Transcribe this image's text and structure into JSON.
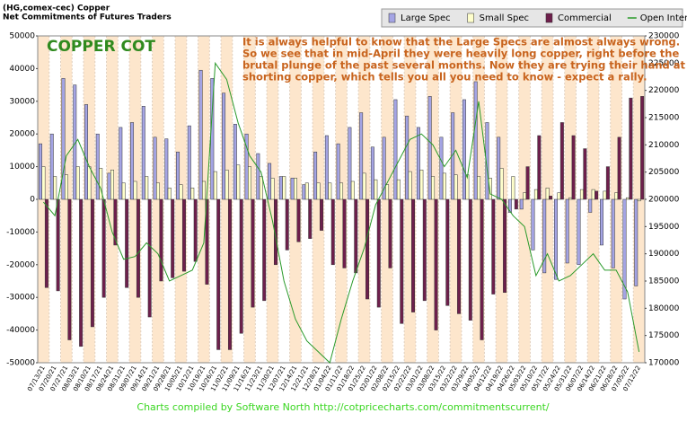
{
  "chart_data": {
    "type": "bar",
    "title_lines": [
      "(HG,comex-cec) Copper",
      "Net Commitments of Futures Traders"
    ],
    "label": "COPPER COT",
    "annotation_lines": [
      "It is always helpful to know that the Large Specs are almost always wrong.",
      "So we see that in mid-April they were heavily long copper, right before the",
      "brutal plunge of the past several months. Now they are trying their hand at",
      "shorting copper, which tells you all you need to know - expect a rally."
    ],
    "footer": "Charts compiled by Software North  http://cotpricecharts.com/commitmentscurrent/",
    "categories": [
      "07/13/21",
      "07/20/21",
      "07/27/21",
      "08/03/21",
      "08/10/21",
      "08/17/21",
      "08/24/21",
      "08/31/21",
      "09/07/21",
      "09/14/21",
      "09/21/21",
      "09/28/21",
      "10/05/21",
      "10/12/21",
      "10/19/21",
      "10/26/21",
      "11/02/21",
      "11/09/21",
      "11/16/21",
      "11/23/21",
      "11/30/21",
      "12/07/21",
      "12/14/21",
      "12/21/21",
      "12/28/21",
      "01/04/22",
      "01/11/22",
      "01/18/22",
      "01/25/22",
      "02/01/22",
      "02/08/22",
      "02/15/22",
      "02/22/22",
      "03/01/22",
      "03/08/22",
      "03/15/22",
      "03/22/22",
      "03/29/22",
      "04/05/22",
      "04/12/22",
      "04/19/22",
      "04/26/22",
      "05/03/22",
      "05/10/22",
      "05/17/22",
      "05/24/22",
      "05/31/22",
      "06/07/22",
      "06/14/22",
      "06/21/22",
      "06/28/22",
      "07/05/22",
      "07/12/22"
    ],
    "series": [
      {
        "name": "Large Spec",
        "color": "#a4a4e4",
        "type": "bar",
        "values": [
          17000,
          20000,
          37000,
          35000,
          29000,
          20000,
          8000,
          22000,
          23500,
          28500,
          19000,
          18500,
          14500,
          22500,
          39500,
          37000,
          32500,
          23000,
          20000,
          14000,
          11000,
          7000,
          6500,
          4500,
          14500,
          19500,
          17000,
          22000,
          26500,
          16000,
          19000,
          30500,
          25500,
          22000,
          31500,
          19000,
          26500,
          30500,
          36000,
          23500,
          19000,
          -4000,
          -3000,
          -15500,
          -22500,
          -24500,
          -19500,
          -20000,
          -4000,
          -14000,
          -21000,
          -30500,
          -26500
        ]
      },
      {
        "name": "Small Spec",
        "color": "#ffffcc",
        "type": "bar",
        "values": [
          10000,
          7000,
          7500,
          10000,
          10000,
          9500,
          9000,
          5000,
          5500,
          7000,
          5000,
          3500,
          4500,
          3500,
          5500,
          8500,
          9000,
          10500,
          10000,
          7000,
          6500,
          7000,
          6500,
          5000,
          5000,
          5000,
          5000,
          5500,
          8000,
          6000,
          4500,
          6000,
          8500,
          9000,
          7000,
          8000,
          7500,
          7500,
          7000,
          6500,
          9500,
          7000,
          2000,
          3000,
          3500,
          2000,
          500,
          3000,
          3000,
          2500,
          2000,
          500,
          -500
        ]
      },
      {
        "name": "Commercial",
        "color": "#6e1f4c",
        "type": "bar",
        "values": [
          -27000,
          -28000,
          -43000,
          -45000,
          -39000,
          -30000,
          -14000,
          -27000,
          -30000,
          -36000,
          -25000,
          -24000,
          -22000,
          -19000,
          -26000,
          -46000,
          -46000,
          -41000,
          -33000,
          -31000,
          -20000,
          -15500,
          -13000,
          -12000,
          -9500,
          -20000,
          -21000,
          -22500,
          -30500,
          -33000,
          -21000,
          -38000,
          -34500,
          -31000,
          -40000,
          -32500,
          -35000,
          -37000,
          -43000,
          -29000,
          -28500,
          -3000,
          10000,
          19500,
          1000,
          23500,
          19500,
          15500,
          2500,
          10000,
          19000,
          31000,
          31500
        ]
      },
      {
        "name": "Open Interest",
        "color": "#2a9a2a",
        "type": "line",
        "axis": "y2",
        "values": [
          199500,
          197000,
          208000,
          211000,
          206000,
          202000,
          194000,
          189000,
          189500,
          192000,
          190000,
          185000,
          186000,
          187000,
          192000,
          225000,
          222000,
          214000,
          208000,
          205000,
          196000,
          185000,
          178000,
          174000,
          172000,
          170000,
          178000,
          185000,
          191000,
          199000,
          203000,
          207000,
          211000,
          212000,
          210000,
          206000,
          209000,
          204000,
          218000,
          201000,
          200000,
          197000,
          195000,
          186000,
          190000,
          185000,
          186000,
          188000,
          190000,
          187000,
          187000,
          183000,
          172000
        ]
      }
    ],
    "ylim": [
      -50000,
      50000
    ],
    "yticks": [
      -50000,
      -40000,
      -30000,
      -20000,
      -10000,
      0,
      10000,
      20000,
      30000,
      40000,
      50000
    ],
    "y2lim": [
      170000,
      230000
    ],
    "y2ticks": [
      170000,
      175000,
      180000,
      185000,
      190000,
      195000,
      200000,
      205000,
      210000,
      215000,
      220000,
      225000,
      230000
    ]
  }
}
